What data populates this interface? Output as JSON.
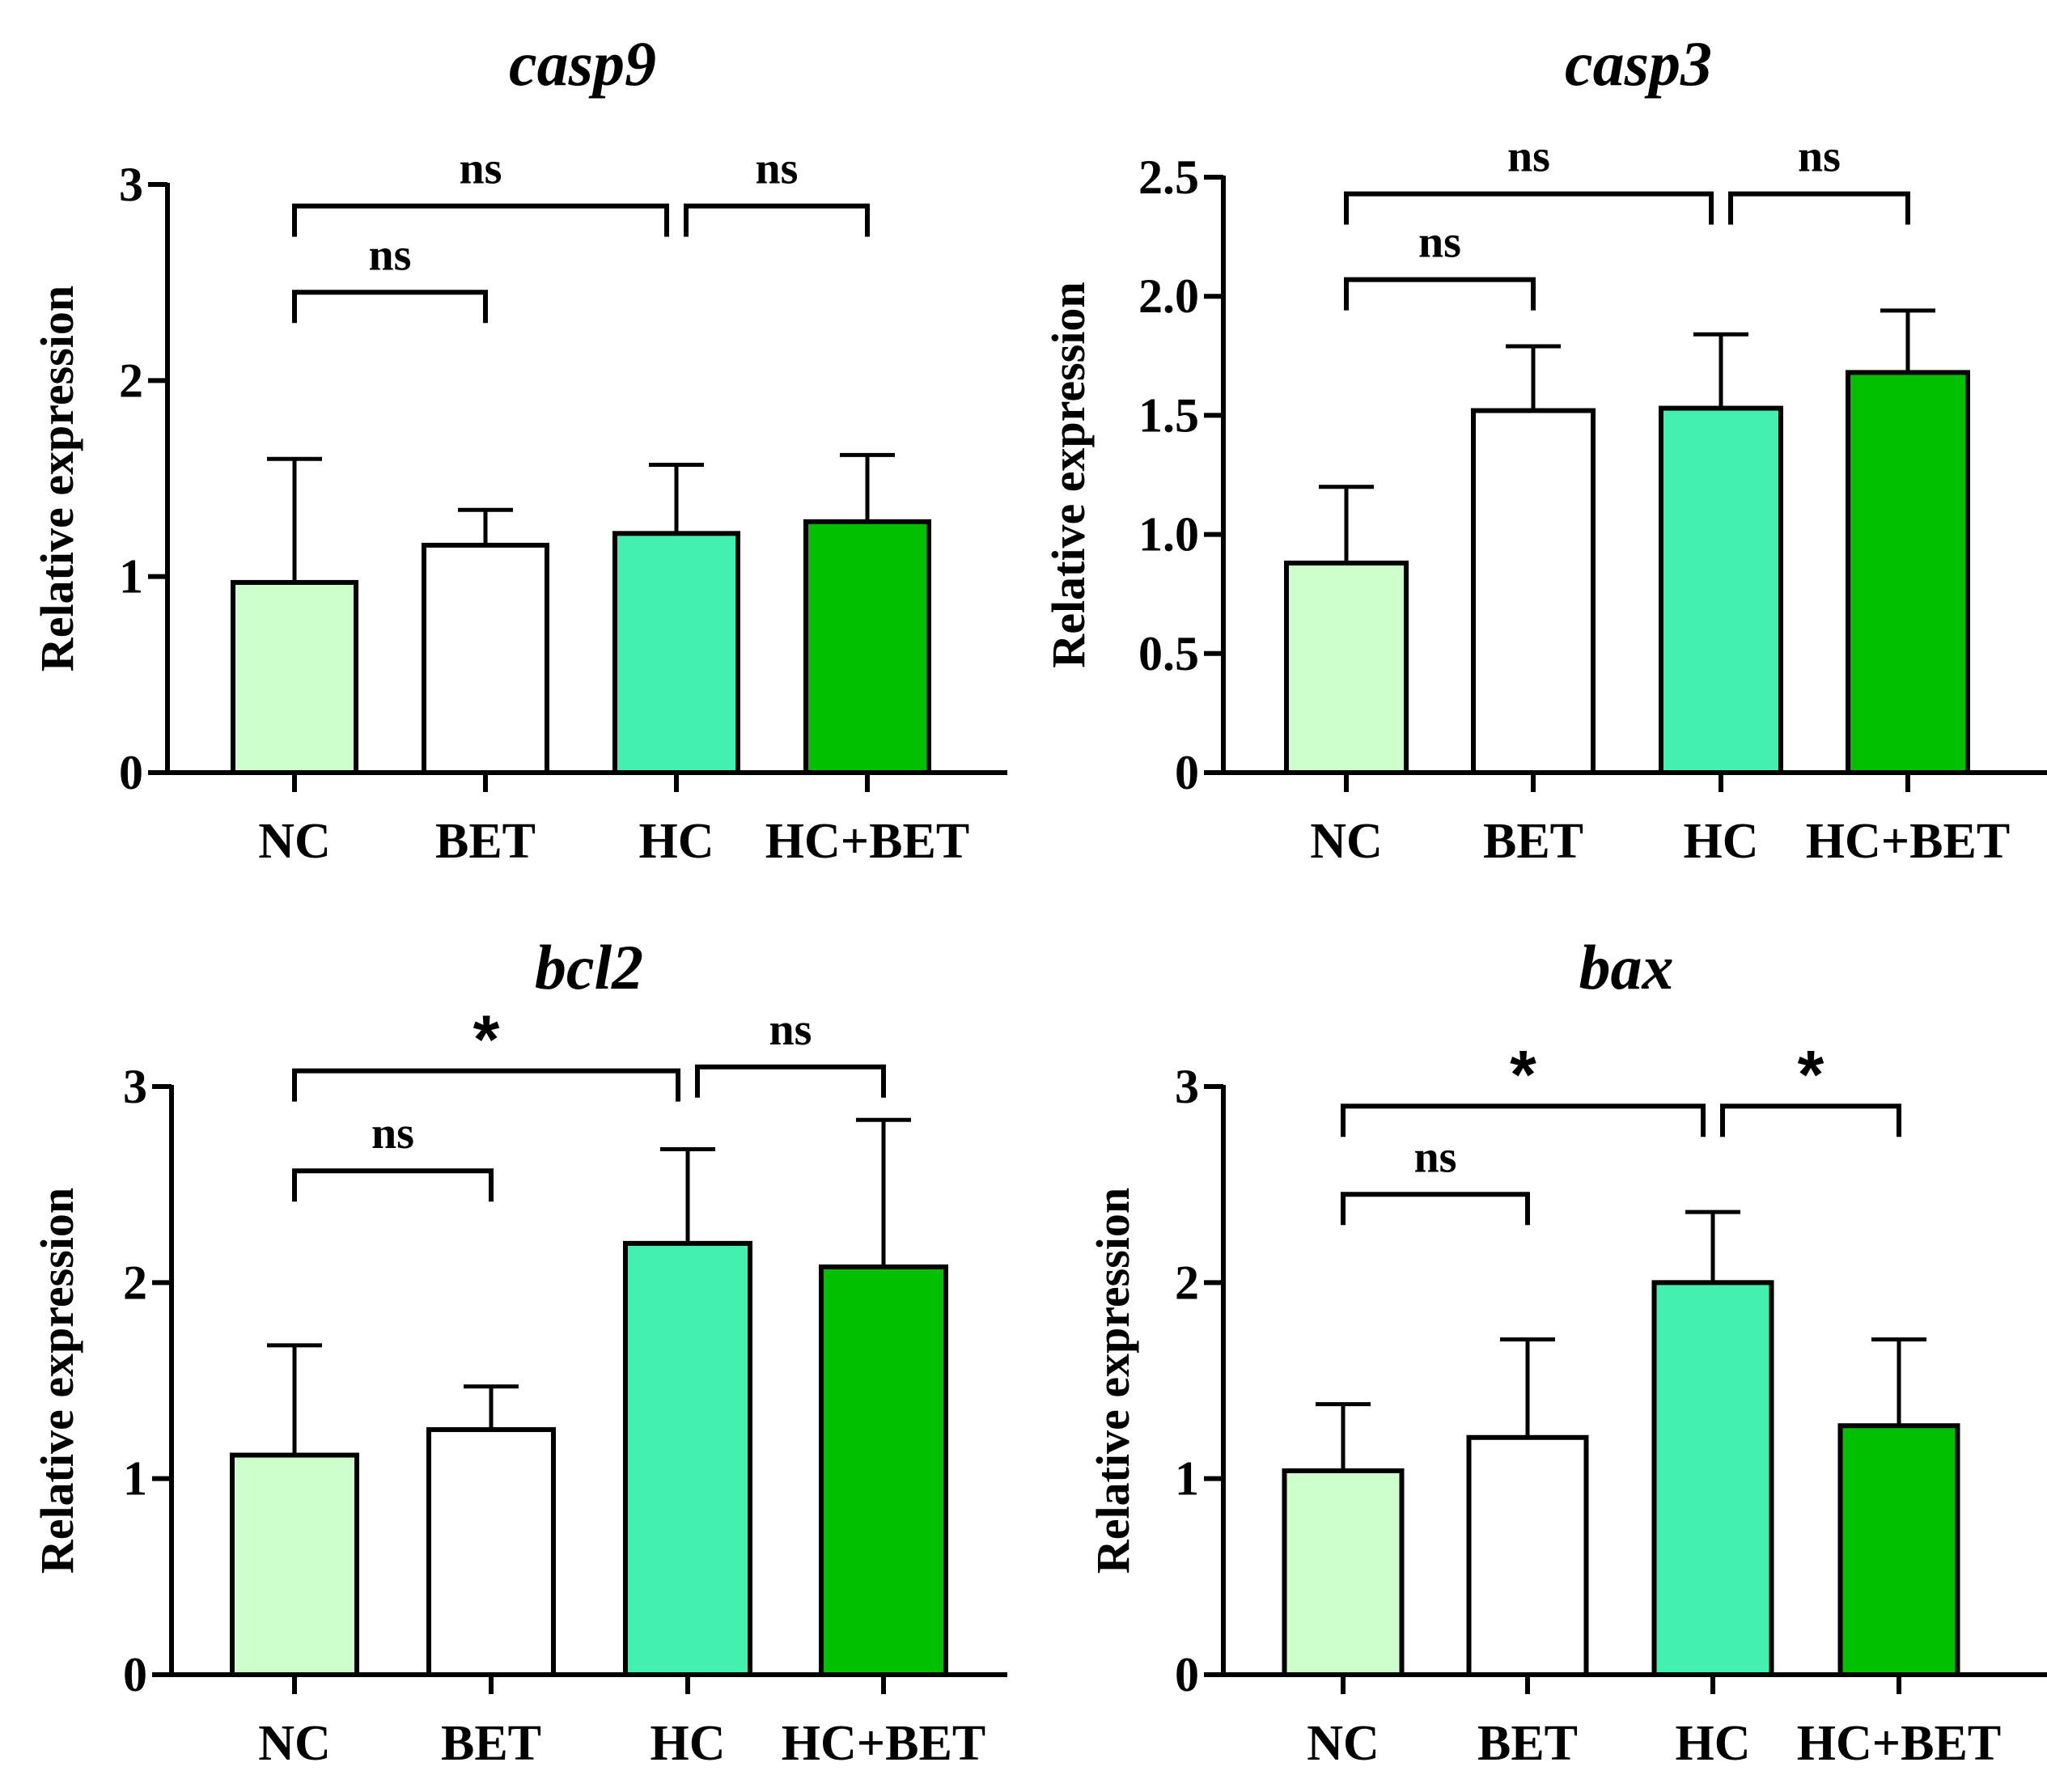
{
  "chart_data": [
    {
      "type": "bar",
      "title": "casp9",
      "ylabel": "Relative expression",
      "xlabel": "",
      "ylim": [
        0,
        3
      ],
      "yticks": [
        0,
        1,
        2,
        3
      ],
      "ytick_labels": [
        "0",
        "1",
        "2",
        "3"
      ],
      "categories": [
        "NC",
        "BET",
        "HC",
        "HC+BET"
      ],
      "values": [
        0.97,
        1.16,
        1.22,
        1.28
      ],
      "error_upper": [
        1.6,
        1.34,
        1.57,
        1.62
      ],
      "colors": [
        "#ccffcc",
        "#ffffff",
        "#44f0b0",
        "#00c000"
      ],
      "comparisons": [
        {
          "from": "NC",
          "to": "BET",
          "label": "ns",
          "level": 2.45
        },
        {
          "from": "NC",
          "to": "HC",
          "label": "ns",
          "level": 2.89
        },
        {
          "from": "HC",
          "to": "HC+BET",
          "label": "ns",
          "level": 2.89
        }
      ]
    },
    {
      "type": "bar",
      "title": "casp3",
      "ylabel": "Relative expression",
      "xlabel": "",
      "ylim": [
        0,
        2.5
      ],
      "yticks": [
        0,
        0.5,
        1,
        1.5,
        2,
        2.5
      ],
      "ytick_labels": [
        "0",
        "0.5",
        "1.0",
        "1.5",
        "2.0",
        "2.5"
      ],
      "categories": [
        "NC",
        "BET",
        "HC",
        "HC+BET"
      ],
      "values": [
        0.88,
        1.52,
        1.53,
        1.68
      ],
      "error_upper": [
        1.2,
        1.79,
        1.84,
        1.94
      ],
      "colors": [
        "#ccffcc",
        "#ffffff",
        "#44f0b0",
        "#00c000"
      ],
      "comparisons": [
        {
          "from": "NC",
          "to": "BET",
          "label": "ns",
          "level": 2.07
        },
        {
          "from": "NC",
          "to": "HC",
          "label": "ns",
          "level": 2.43
        },
        {
          "from": "HC",
          "to": "HC+BET",
          "label": "ns",
          "level": 2.43
        }
      ]
    },
    {
      "type": "bar",
      "title": "bcl2",
      "ylabel": "Relative expression",
      "xlabel": "",
      "ylim": [
        0,
        3
      ],
      "yticks": [
        0,
        1,
        2,
        3
      ],
      "ytick_labels": [
        "0",
        "1",
        "2",
        "3"
      ],
      "categories": [
        "NC",
        "BET",
        "HC",
        "HC+BET"
      ],
      "values": [
        1.12,
        1.25,
        2.2,
        2.08
      ],
      "error_upper": [
        1.68,
        1.47,
        2.68,
        2.83
      ],
      "colors": [
        "#ccffcc",
        "#ffffff",
        "#44f0b0",
        "#00c000"
      ],
      "comparisons": [
        {
          "from": "NC",
          "to": "BET",
          "label": "ns",
          "level": 2.57
        },
        {
          "from": "NC",
          "to": "HC",
          "label": "*",
          "level": 3.08
        },
        {
          "from": "HC",
          "to": "HC+BET",
          "label": "ns",
          "level": 3.1
        }
      ]
    },
    {
      "type": "bar",
      "title": "bax",
      "ylabel": "Relative expression",
      "xlabel": "",
      "ylim": [
        0,
        3
      ],
      "yticks": [
        0,
        1,
        2,
        3
      ],
      "ytick_labels": [
        "0",
        "1",
        "2",
        "3"
      ],
      "categories": [
        "NC",
        "BET",
        "HC",
        "HC+BET"
      ],
      "values": [
        1.04,
        1.21,
        2.0,
        1.27
      ],
      "error_upper": [
        1.38,
        1.71,
        2.36,
        1.71
      ],
      "colors": [
        "#ccffcc",
        "#ffffff",
        "#44f0b0",
        "#00c000"
      ],
      "comparisons": [
        {
          "from": "NC",
          "to": "BET",
          "label": "ns",
          "level": 2.45
        },
        {
          "from": "NC",
          "to": "HC",
          "label": "*",
          "level": 2.9
        },
        {
          "from": "HC",
          "to": "HC+BET",
          "label": "*",
          "level": 2.9
        }
      ]
    }
  ]
}
